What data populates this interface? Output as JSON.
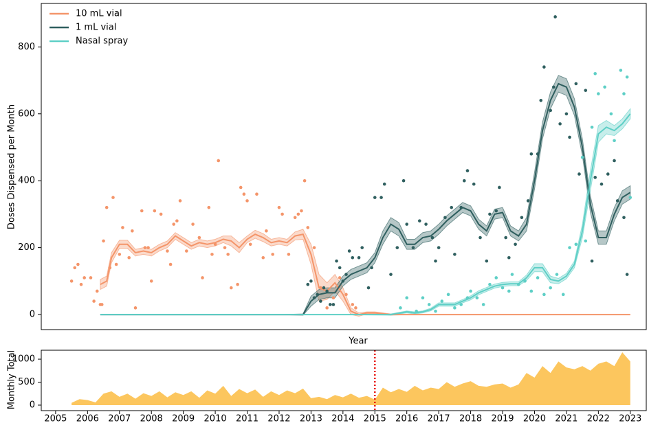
{
  "chart_data": [
    {
      "type": "line",
      "xlabel": "Year",
      "ylabel": "Doses Dispensed per Month",
      "xlim": [
        2004.55,
        2023.5
      ],
      "ylim": [
        -45,
        930
      ],
      "yticks": [
        0,
        200,
        400,
        600,
        800
      ],
      "legend": "upper left",
      "series": [
        {
          "name": "10 mL vial",
          "color": "#f4956a",
          "x": [
            2006.4,
            2006.6,
            2006.75,
            2007,
            2007.25,
            2007.5,
            2007.75,
            2008,
            2008.25,
            2008.5,
            2008.75,
            2009,
            2009.25,
            2009.5,
            2009.75,
            2010,
            2010.25,
            2010.5,
            2010.75,
            2011,
            2011.25,
            2011.5,
            2011.75,
            2012,
            2012.25,
            2012.5,
            2012.75,
            2013,
            2013.25,
            2013.5,
            2013.75,
            2014,
            2014.25,
            2014.5,
            2014.75,
            2015,
            2015.5,
            2016,
            2017,
            2018,
            2019,
            2020,
            2021,
            2022,
            2023
          ],
          "values": [
            90,
            100,
            170,
            210,
            210,
            185,
            190,
            185,
            200,
            210,
            235,
            220,
            205,
            215,
            210,
            215,
            225,
            220,
            200,
            225,
            240,
            230,
            215,
            220,
            215,
            235,
            240,
            180,
            80,
            70,
            95,
            60,
            10,
            0,
            5,
            5,
            0,
            0,
            0,
            0,
            0,
            0,
            0,
            0,
            0
          ],
          "band": [
            15,
            15,
            15,
            12,
            12,
            10,
            10,
            10,
            10,
            10,
            10,
            10,
            10,
            10,
            10,
            10,
            10,
            15,
            15,
            10,
            12,
            12,
            10,
            10,
            10,
            12,
            15,
            30,
            40,
            25,
            25,
            20,
            10,
            5,
            3,
            3,
            2,
            0,
            0,
            0,
            0,
            0,
            0,
            0,
            0
          ],
          "points": {
            "x": [
              2005.5,
              2005.6,
              2005.7,
              2005.8,
              2005.9,
              2006.1,
              2006.2,
              2006.3,
              2006.4,
              2006.45,
              2006.5,
              2006.6,
              2006.7,
              2006.8,
              2006.9,
              2007.0,
              2007.1,
              2007.3,
              2007.4,
              2007.5,
              2007.7,
              2007.8,
              2007.9,
              2008.0,
              2008.1,
              2008.3,
              2008.5,
              2008.6,
              2008.7,
              2008.8,
              2008.9,
              2009.1,
              2009.3,
              2009.5,
              2009.6,
              2009.8,
              2009.9,
              2010.0,
              2010.1,
              2010.3,
              2010.4,
              2010.5,
              2010.7,
              2010.8,
              2010.9,
              2011.0,
              2011.1,
              2011.3,
              2011.5,
              2011.6,
              2011.8,
              2012.0,
              2012.1,
              2012.3,
              2012.5,
              2012.6,
              2012.7,
              2012.8,
              2012.9,
              2013.1,
              2013.3,
              2013.5,
              2013.7,
              2013.9,
              2014.1,
              2014.3,
              2014.4
            ],
            "y": [
              100,
              140,
              150,
              90,
              110,
              110,
              40,
              70,
              30,
              30,
              220,
              320,
              140,
              350,
              150,
              180,
              260,
              170,
              250,
              20,
              310,
              200,
              200,
              100,
              310,
              300,
              190,
              150,
              270,
              280,
              340,
              190,
              270,
              230,
              110,
              320,
              180,
              210,
              460,
              200,
              180,
              80,
              90,
              380,
              360,
              340,
              210,
              360,
              170,
              250,
              180,
              320,
              300,
              180,
              290,
              300,
              310,
              400,
              260,
              200,
              80,
              20,
              50,
              110,
              60,
              30,
              20
            ]
          }
        },
        {
          "name": "1 mL vial",
          "color": "#2f5f5f",
          "x": [
            2006.4,
            2008,
            2010,
            2012,
            2012.75,
            2013,
            2013.25,
            2013.5,
            2013.75,
            2014,
            2014.25,
            2014.5,
            2014.75,
            2015,
            2015.25,
            2015.5,
            2015.75,
            2016,
            2016.25,
            2016.5,
            2016.75,
            2017,
            2017.25,
            2017.5,
            2017.75,
            2018,
            2018.25,
            2018.5,
            2018.75,
            2019,
            2019.25,
            2019.5,
            2019.75,
            2020,
            2020.25,
            2020.5,
            2020.75,
            2021,
            2021.25,
            2021.5,
            2021.75,
            2022,
            2022.25,
            2022.5,
            2022.75,
            2023
          ],
          "values": [
            0,
            0,
            0,
            0,
            0,
            40,
            60,
            65,
            65,
            100,
            120,
            130,
            140,
            170,
            230,
            270,
            255,
            210,
            210,
            230,
            235,
            255,
            280,
            300,
            320,
            310,
            270,
            250,
            300,
            305,
            250,
            235,
            270,
            400,
            550,
            640,
            690,
            680,
            620,
            500,
            330,
            230,
            230,
            300,
            350,
            365
          ],
          "band": [
            0,
            0,
            0,
            0,
            2,
            15,
            15,
            15,
            15,
            15,
            15,
            15,
            15,
            15,
            20,
            20,
            20,
            15,
            15,
            15,
            15,
            15,
            15,
            15,
            15,
            15,
            15,
            15,
            15,
            15,
            15,
            15,
            20,
            25,
            25,
            25,
            25,
            25,
            25,
            25,
            25,
            20,
            20,
            20,
            20,
            20
          ],
          "points": {
            "x": [
              2012.9,
              2013.0,
              2013.1,
              2013.2,
              2013.3,
              2013.4,
              2013.5,
              2013.6,
              2013.7,
              2013.8,
              2013.9,
              2014.0,
              2014.1,
              2014.2,
              2014.3,
              2014.5,
              2014.6,
              2014.8,
              2014.9,
              2015.0,
              2015.2,
              2015.3,
              2015.5,
              2015.7,
              2015.9,
              2016.0,
              2016.2,
              2016.4,
              2016.6,
              2016.8,
              2016.9,
              2017.0,
              2017.2,
              2017.4,
              2017.5,
              2017.7,
              2017.8,
              2017.9,
              2018.1,
              2018.3,
              2018.5,
              2018.6,
              2018.8,
              2018.9,
              2019.1,
              2019.2,
              2019.4,
              2019.6,
              2019.8,
              2019.9,
              2020.1,
              2020.2,
              2020.3,
              2020.5,
              2020.6,
              2020.8,
              2020.65,
              2021.0,
              2021.1,
              2021.3,
              2021.4,
              2021.6,
              2021.8,
              2021.9,
              2022.1,
              2022.3,
              2022.5,
              2022.6,
              2022.8,
              2022.9
            ],
            "y": [
              90,
              100,
              50,
              60,
              40,
              80,
              70,
              30,
              30,
              160,
              140,
              100,
              120,
              190,
              170,
              170,
              200,
              80,
              140,
              350,
              350,
              390,
              120,
              200,
              400,
              270,
              200,
              280,
              270,
              230,
              160,
              200,
              290,
              320,
              180,
              320,
              400,
              430,
              390,
              230,
              160,
              300,
              310,
              380,
              230,
              170,
              210,
              290,
              340,
              480,
              480,
              640,
              740,
              610,
              680,
              570,
              890,
              600,
              530,
              690,
              420,
              670,
              160,
              410,
              390,
              420,
              460,
              340,
              290,
              120
            ]
          }
        },
        {
          "name": "Nasal spray",
          "color": "#5ecfc6",
          "x": [
            2006.4,
            2008,
            2010,
            2012,
            2014,
            2015.5,
            2016,
            2016.25,
            2016.5,
            2016.75,
            2017,
            2017.25,
            2017.5,
            2017.75,
            2018,
            2018.25,
            2018.5,
            2018.75,
            2019,
            2019.25,
            2019.5,
            2019.75,
            2020,
            2020.25,
            2020.5,
            2020.75,
            2021,
            2021.25,
            2021.5,
            2021.75,
            2022,
            2022.25,
            2022.5,
            2022.75,
            2023
          ],
          "values": [
            0,
            0,
            0,
            0,
            0,
            0,
            8,
            5,
            8,
            15,
            30,
            30,
            30,
            40,
            50,
            65,
            75,
            85,
            90,
            92,
            92,
            110,
            140,
            140,
            105,
            100,
            115,
            150,
            250,
            400,
            540,
            560,
            550,
            570,
            600
          ],
          "band": [
            0,
            0,
            0,
            0,
            0,
            2,
            3,
            3,
            3,
            4,
            5,
            5,
            5,
            5,
            6,
            6,
            6,
            6,
            6,
            6,
            6,
            8,
            12,
            12,
            10,
            8,
            8,
            10,
            20,
            30,
            25,
            20,
            15,
            15,
            15
          ],
          "points": {
            "x": [
              2015.8,
              2016.0,
              2016.3,
              2016.5,
              2016.7,
              2016.9,
              2017.1,
              2017.3,
              2017.5,
              2017.7,
              2017.9,
              2018.0,
              2018.2,
              2018.4,
              2018.6,
              2018.8,
              2019.0,
              2019.2,
              2019.3,
              2019.5,
              2019.7,
              2019.9,
              2020.1,
              2020.3,
              2020.5,
              2020.7,
              2020.9,
              2021.1,
              2021.3,
              2021.5,
              2021.6,
              2021.8,
              2021.9,
              2022.0,
              2022.2,
              2022.4,
              2022.5,
              2022.7,
              2022.8,
              2022.9,
              2023.0
            ],
            "y": [
              20,
              50,
              10,
              50,
              30,
              10,
              40,
              60,
              20,
              30,
              50,
              70,
              50,
              30,
              90,
              110,
              80,
              70,
              120,
              90,
              100,
              70,
              110,
              60,
              80,
              120,
              60,
              200,
              210,
              470,
              220,
              560,
              720,
              660,
              680,
              600,
              520,
              730,
              660,
              710,
              350
            ]
          }
        }
      ]
    },
    {
      "type": "area",
      "ylabel": "Monthly Total",
      "color": "#fcc65e",
      "xlim": [
        2004.55,
        2023.5
      ],
      "ylim": [
        -120,
        1195
      ],
      "yticks": [
        0,
        500,
        1000
      ],
      "xticks": [
        2005,
        2006,
        2007,
        2008,
        2009,
        2010,
        2011,
        2012,
        2013,
        2014,
        2015,
        2016,
        2017,
        2018,
        2019,
        2020,
        2021,
        2022,
        2023
      ],
      "vline": {
        "x": 2015,
        "color": "#e8140f"
      },
      "x": [
        2005.5,
        2005.75,
        2006,
        2006.25,
        2006.5,
        2006.75,
        2007,
        2007.25,
        2007.5,
        2007.75,
        2008,
        2008.25,
        2008.5,
        2008.75,
        2009,
        2009.25,
        2009.5,
        2009.75,
        2010,
        2010.25,
        2010.5,
        2010.75,
        2011,
        2011.25,
        2011.5,
        2011.75,
        2012,
        2012.25,
        2012.5,
        2012.75,
        2013,
        2013.25,
        2013.5,
        2013.75,
        2014,
        2014.25,
        2014.5,
        2014.75,
        2015,
        2015.25,
        2015.5,
        2015.75,
        2016,
        2016.25,
        2016.5,
        2016.75,
        2017,
        2017.25,
        2017.5,
        2017.75,
        2018,
        2018.25,
        2018.5,
        2018.75,
        2019,
        2019.25,
        2019.5,
        2019.75,
        2020,
        2020.25,
        2020.5,
        2020.75,
        2021,
        2021.25,
        2021.5,
        2021.75,
        2022,
        2022.25,
        2022.5,
        2022.75,
        2023
      ],
      "values": [
        50,
        130,
        110,
        60,
        250,
        300,
        180,
        250,
        140,
        260,
        200,
        300,
        170,
        280,
        220,
        300,
        160,
        320,
        250,
        420,
        200,
        350,
        260,
        340,
        180,
        300,
        220,
        320,
        260,
        360,
        150,
        180,
        130,
        220,
        170,
        250,
        160,
        200,
        120,
        380,
        280,
        350,
        290,
        420,
        320,
        380,
        350,
        500,
        400,
        470,
        520,
        420,
        400,
        450,
        470,
        380,
        450,
        700,
        600,
        850,
        700,
        950,
        820,
        780,
        850,
        750,
        900,
        950,
        850,
        1150,
        950
      ]
    }
  ]
}
